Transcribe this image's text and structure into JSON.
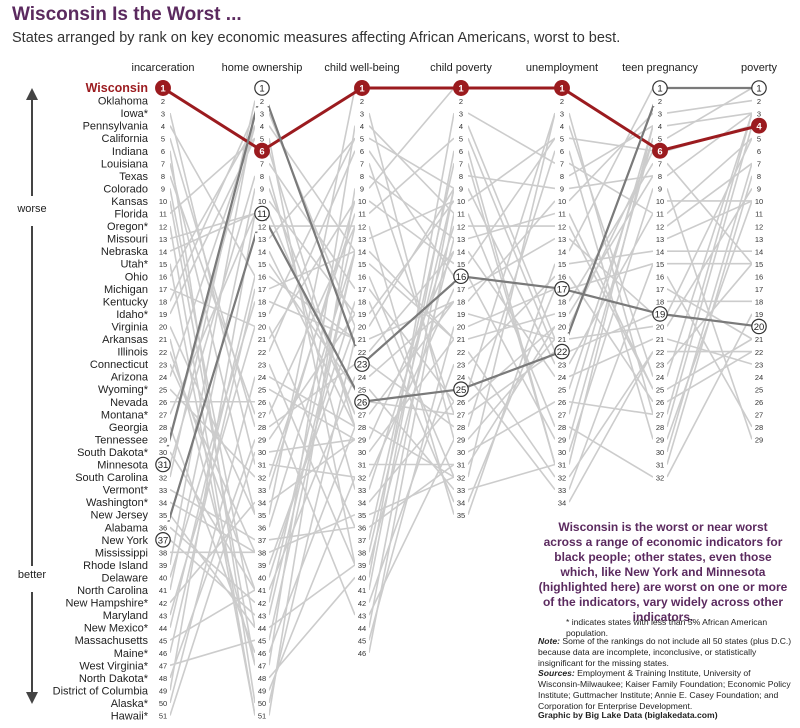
{
  "header": {
    "title": "Wisconsin Is the Worst ...",
    "subtitle": "States arranged by rank on key economic measures affecting African Americans, worst to best."
  },
  "axis": {
    "worse_label": "worse",
    "better_label": "better"
  },
  "annotation": "Wisconsin is the worst or near worst across a range of economic indicators for black people; other states, even those which, like New York and Minnesota (highlighted here) are worst on one or more of the indicators, vary widely across other indicators.",
  "footnote": "* indicates states with less than 5% African American population.",
  "note": {
    "label": "Note:",
    "text": "Some of the rankings do not include all 50 states (plus D.C.) because data are incomplete, inconclusive, or statistically insignificant for the missing states."
  },
  "sources": {
    "label": "Sources:",
    "text": "Employment & Training Institute, University of Wisconsin-Milwaukee; Kaiser Family Foundation; Economic Policy Institute; Guttmacher Institute; Annie E. Casey Foundation; and Corporation for Enterprise Development."
  },
  "credit": "Graphic by Big Lake Data (biglakedata.com)",
  "colors": {
    "wisconsin": "#9b1b1f",
    "highlight": "#7a7a7a",
    "other": "#cccccc",
    "title": "#5b2a5f"
  },
  "chart_data": {
    "type": "slope",
    "title": "Wisconsin Is the Worst ...",
    "subtitle": "States arranged by rank on key economic measures affecting African Americans, worst to best.",
    "categories": [
      "incarceration",
      "home ownership",
      "child well-being",
      "child poverty",
      "unemployment",
      "teen pregnancy",
      "poverty"
    ],
    "rank_counts": [
      51,
      51,
      46,
      35,
      34,
      32,
      29
    ],
    "states": [
      "Wisconsin",
      "Oklahoma",
      "Iowa*",
      "Pennsylvania",
      "California",
      "Indiana",
      "Louisiana",
      "Texas",
      "Colorado",
      "Kansas",
      "Florida",
      "Oregon*",
      "Missouri",
      "Nebraska",
      "Utah*",
      "Ohio",
      "Michigan",
      "Kentucky",
      "Idaho*",
      "Virginia",
      "Arkansas",
      "Illinois",
      "Connecticut",
      "Arizona",
      "Wyoming*",
      "Nevada",
      "Montana*",
      "Georgia",
      "Tennessee",
      "South Dakota*",
      "Minnesota",
      "South Carolina",
      "Vermont*",
      "Washington*",
      "New Jersey",
      "Alabama",
      "New York",
      "Mississippi",
      "Rhode Island",
      "Delaware",
      "North Carolina",
      "New Hampshire*",
      "Maryland",
      "New Mexico*",
      "Massachusetts",
      "Maine*",
      "West Virginia*",
      "North Dakota*",
      "District of Columbia",
      "Alaska*",
      "Hawaii*"
    ],
    "series": [
      {
        "name": "Wisconsin",
        "ranks": [
          1,
          6,
          1,
          1,
          1,
          6,
          4
        ]
      },
      {
        "name": "Minnesota",
        "ranks": [
          31,
          1,
          23,
          16,
          17,
          19,
          20
        ]
      },
      {
        "name": "New York",
        "ranks": [
          37,
          11,
          26,
          25,
          22,
          1,
          1
        ]
      }
    ]
  }
}
